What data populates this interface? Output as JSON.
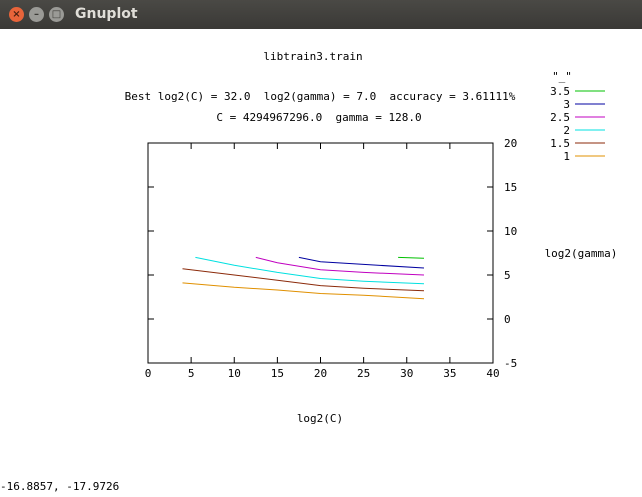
{
  "window": {
    "title": "Gnuplot",
    "close_glyph": "×",
    "minimize_glyph": "–",
    "maximize_glyph": "□"
  },
  "status": {
    "coords": "-16.8857, -17.9726"
  },
  "chart_data": {
    "type": "line",
    "title": "libtrain3.train",
    "subtitle1": "Best log2(C) = 32.0  log2(gamma) = 7.0  accuracy = 3.61111%",
    "subtitle2": "C = 4294967296.0  gamma = 128.0",
    "xlabel": "log2(C)",
    "ylabel": "log2(gamma)",
    "xlim": [
      0,
      40
    ],
    "ylim": [
      -5,
      20
    ],
    "x_ticks": [
      0,
      5,
      10,
      15,
      20,
      25,
      30,
      35,
      40
    ],
    "y_ticks": [
      -5,
      0,
      5,
      10,
      15,
      20
    ],
    "x_tick_labels": [
      "0",
      "5",
      "10",
      "15",
      "20",
      "25",
      "30",
      "35",
      "40"
    ],
    "y_tick_labels": [
      "-5",
      "0",
      "5",
      "10",
      "15",
      "20"
    ],
    "legend_title": "\"_\"",
    "legend_placement": "outside top-right",
    "series": [
      {
        "name": "3.5",
        "color": "#00c000",
        "x": [
          29,
          32
        ],
        "y": [
          7.0,
          6.9
        ]
      },
      {
        "name": "3",
        "color": "#0000a0",
        "x": [
          17.5,
          20,
          25,
          32
        ],
        "y": [
          7.0,
          6.5,
          6.2,
          5.8
        ]
      },
      {
        "name": "2.5",
        "color": "#c000c0",
        "x": [
          12.5,
          15,
          20,
          25,
          32
        ],
        "y": [
          7.0,
          6.4,
          5.6,
          5.3,
          5.0
        ]
      },
      {
        "name": "2",
        "color": "#00e0e0",
        "x": [
          5.5,
          10,
          15,
          20,
          25,
          32
        ],
        "y": [
          7.0,
          6.1,
          5.3,
          4.6,
          4.3,
          4.0
        ]
      },
      {
        "name": "1.5",
        "color": "#8b2a0a",
        "x": [
          4,
          10,
          15,
          20,
          25,
          32
        ],
        "y": [
          5.7,
          5.0,
          4.4,
          3.8,
          3.5,
          3.2
        ]
      },
      {
        "name": "1",
        "color": "#e09000",
        "x": [
          4,
          10,
          15,
          20,
          25,
          32
        ],
        "y": [
          4.1,
          3.6,
          3.3,
          2.9,
          2.7,
          2.3
        ]
      }
    ]
  }
}
